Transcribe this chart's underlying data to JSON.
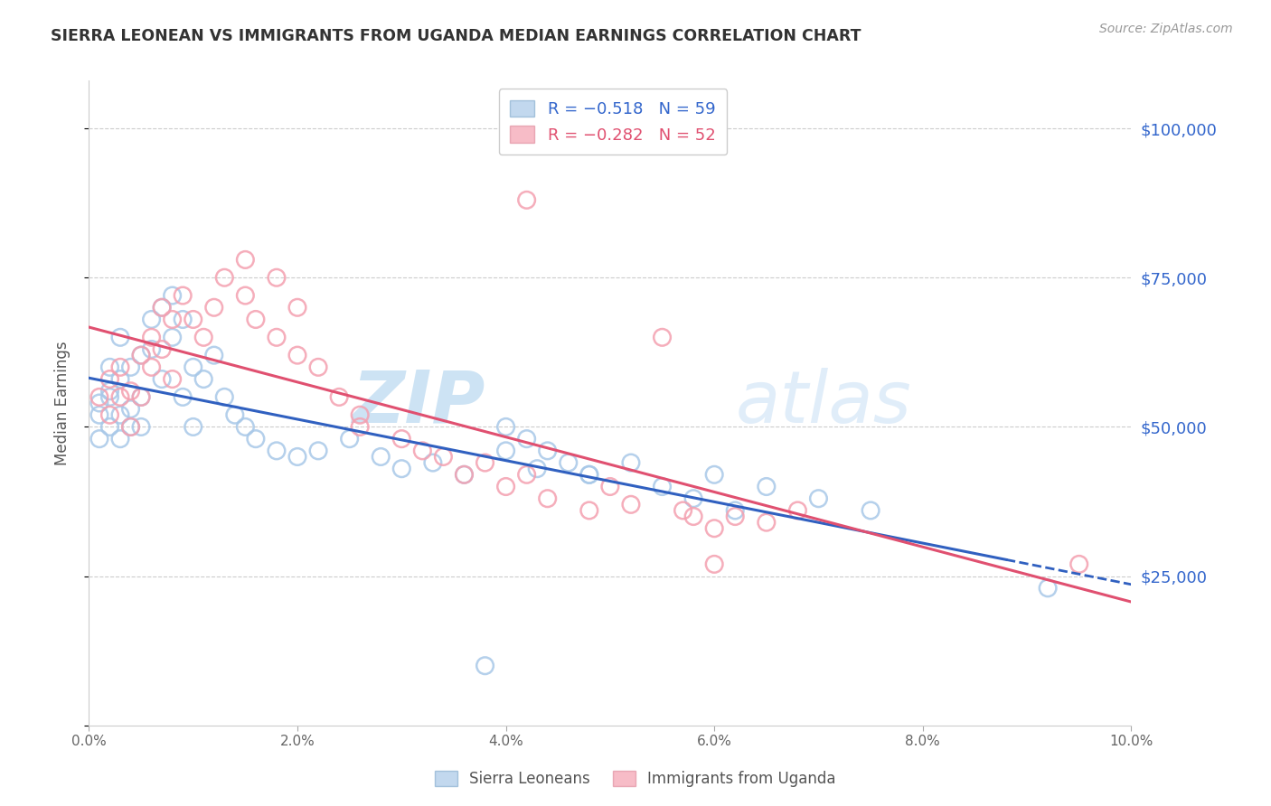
{
  "title": "SIERRA LEONEAN VS IMMIGRANTS FROM UGANDA MEDIAN EARNINGS CORRELATION CHART",
  "source": "Source: ZipAtlas.com",
  "ylabel": "Median Earnings",
  "y_ticks": [
    0,
    25000,
    50000,
    75000,
    100000
  ],
  "y_tick_labels": [
    "",
    "$25,000",
    "$50,000",
    "$75,000",
    "$100,000"
  ],
  "xlim": [
    0.0,
    0.1
  ],
  "ylim": [
    0,
    108000
  ],
  "color_blue": "#A8C8E8",
  "color_pink": "#F4A0B0",
  "color_blue_line": "#3060C0",
  "color_pink_line": "#E05070",
  "watermark_zip": "ZIP",
  "watermark_atlas": "atlas",
  "sierra_leoneans_x": [
    0.001,
    0.001,
    0.001,
    0.002,
    0.002,
    0.002,
    0.002,
    0.003,
    0.003,
    0.003,
    0.003,
    0.004,
    0.004,
    0.004,
    0.005,
    0.005,
    0.005,
    0.006,
    0.006,
    0.007,
    0.007,
    0.008,
    0.008,
    0.009,
    0.009,
    0.01,
    0.01,
    0.011,
    0.012,
    0.013,
    0.014,
    0.015,
    0.016,
    0.018,
    0.02,
    0.022,
    0.025,
    0.028,
    0.03,
    0.033,
    0.036,
    0.04,
    0.043,
    0.048,
    0.052,
    0.06,
    0.065,
    0.07,
    0.075,
    0.04,
    0.042,
    0.044,
    0.046,
    0.048,
    0.055,
    0.058,
    0.062,
    0.092,
    0.038
  ],
  "sierra_leoneans_y": [
    54000,
    52000,
    48000,
    56000,
    50000,
    60000,
    55000,
    58000,
    52000,
    48000,
    65000,
    60000,
    53000,
    50000,
    62000,
    55000,
    50000,
    68000,
    63000,
    70000,
    58000,
    72000,
    65000,
    68000,
    55000,
    60000,
    50000,
    58000,
    62000,
    55000,
    52000,
    50000,
    48000,
    46000,
    45000,
    46000,
    48000,
    45000,
    43000,
    44000,
    42000,
    46000,
    43000,
    42000,
    44000,
    42000,
    40000,
    38000,
    36000,
    50000,
    48000,
    46000,
    44000,
    42000,
    40000,
    38000,
    36000,
    23000,
    10000
  ],
  "uganda_x": [
    0.001,
    0.002,
    0.002,
    0.003,
    0.003,
    0.004,
    0.004,
    0.005,
    0.005,
    0.006,
    0.006,
    0.007,
    0.007,
    0.008,
    0.008,
    0.009,
    0.01,
    0.011,
    0.012,
    0.013,
    0.015,
    0.016,
    0.018,
    0.02,
    0.022,
    0.024,
    0.026,
    0.03,
    0.032,
    0.034,
    0.036,
    0.038,
    0.04,
    0.042,
    0.044,
    0.048,
    0.05,
    0.052,
    0.058,
    0.06,
    0.062,
    0.065,
    0.068,
    0.026,
    0.02,
    0.018,
    0.015,
    0.042,
    0.055,
    0.057,
    0.06,
    0.095
  ],
  "uganda_y": [
    55000,
    58000,
    52000,
    60000,
    55000,
    56000,
    50000,
    62000,
    55000,
    65000,
    60000,
    70000,
    63000,
    68000,
    58000,
    72000,
    68000,
    65000,
    70000,
    75000,
    72000,
    68000,
    65000,
    62000,
    60000,
    55000,
    50000,
    48000,
    46000,
    45000,
    42000,
    44000,
    40000,
    42000,
    38000,
    36000,
    40000,
    37000,
    35000,
    33000,
    35000,
    34000,
    36000,
    52000,
    70000,
    75000,
    78000,
    88000,
    65000,
    36000,
    27000,
    27000
  ],
  "xticks": [
    0.0,
    0.02,
    0.04,
    0.06,
    0.08,
    0.1
  ],
  "xtick_labels": [
    "0.0%",
    "2.0%",
    "4.0%",
    "6.0%",
    "8.0%",
    "10.0%"
  ]
}
